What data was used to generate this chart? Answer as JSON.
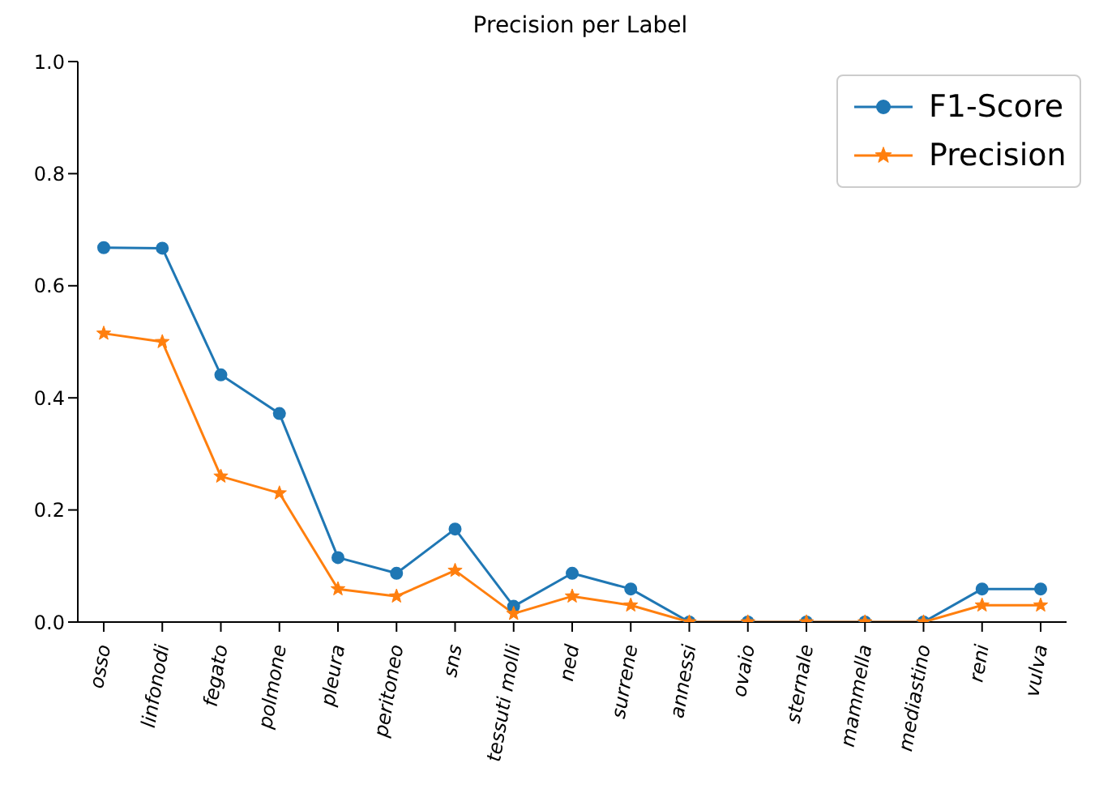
{
  "chart_data": {
    "type": "line",
    "title": "Precision per Label",
    "categories": [
      "osso",
      "linfonodi",
      "fegato",
      "polmone",
      "pleura",
      "peritoneo",
      "sns",
      "tessuti molli",
      "ned",
      "surrene",
      "annessi",
      "ovaio",
      "sternale",
      "mammella",
      "mediastino",
      "reni",
      "vulva"
    ],
    "series": [
      {
        "name": "F1-Score",
        "color": "#1f77b4",
        "marker": "circle",
        "values": [
          0.668,
          0.667,
          0.441,
          0.372,
          0.115,
          0.087,
          0.166,
          0.028,
          0.087,
          0.059,
          0,
          0,
          0,
          0,
          0,
          0.059,
          0.059
        ]
      },
      {
        "name": "Precision",
        "color": "#ff7f0e",
        "marker": "star",
        "values": [
          0.515,
          0.5,
          0.26,
          0.23,
          0.059,
          0.046,
          0.092,
          0.015,
          0.046,
          0.03,
          0,
          0,
          0,
          0,
          0,
          0.03,
          0.03
        ]
      }
    ],
    "ylim": [
      0,
      1
    ],
    "yticks": [
      {
        "value": 0,
        "label": "0.0"
      },
      {
        "value": 0.2,
        "label": "0.2"
      },
      {
        "value": 0.4,
        "label": "0.4"
      },
      {
        "value": 0.6,
        "label": "0.6"
      },
      {
        "value": 0.8,
        "label": "0.8"
      },
      {
        "value": 1,
        "label": "1.0"
      }
    ],
    "grid": false,
    "legend": "top right",
    "line_style": "solid"
  }
}
